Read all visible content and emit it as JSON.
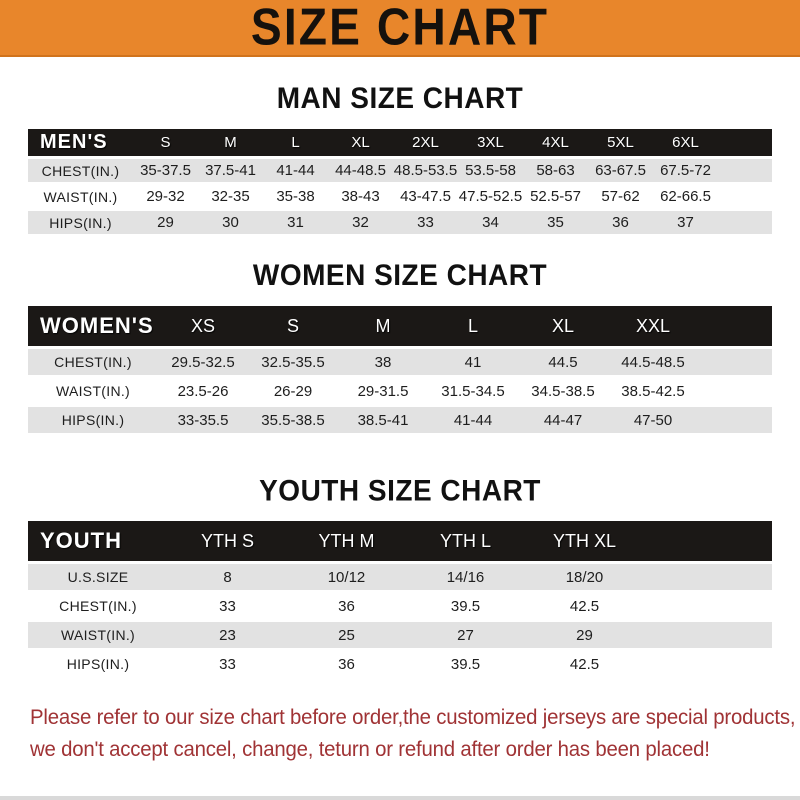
{
  "banner": {
    "title": "SIZE CHART"
  },
  "chart_data": [
    {
      "type": "table",
      "title": "MAN SIZE CHART",
      "columns": [
        "MEN'S",
        "S",
        "M",
        "L",
        "XL",
        "2XL",
        "3XL",
        "4XL",
        "5XL",
        "6XL"
      ],
      "rows": [
        [
          "CHEST(IN.)",
          "35-37.5",
          "37.5-41",
          "41-44",
          "44-48.5",
          "48.5-53.5",
          "53.5-58",
          "58-63",
          "63-67.5",
          "67.5-72"
        ],
        [
          "WAIST(IN.)",
          "29-32",
          "32-35",
          "35-38",
          "38-43",
          "43-47.5",
          "47.5-52.5",
          "52.5-57",
          "57-62",
          "62-66.5"
        ],
        [
          "HIPS(IN.)",
          "29",
          "30",
          "31",
          "32",
          "33",
          "34",
          "35",
          "36",
          "37"
        ]
      ]
    },
    {
      "type": "table",
      "title": "WOMEN SIZE CHART",
      "columns": [
        "WOMEN'S",
        "XS",
        "S",
        "M",
        "L",
        "XL",
        "XXL"
      ],
      "rows": [
        [
          "CHEST(IN.)",
          "29.5-32.5",
          "32.5-35.5",
          "38",
          "41",
          "44.5",
          "44.5-48.5"
        ],
        [
          "WAIST(IN.)",
          "23.5-26",
          "26-29",
          "29-31.5",
          "31.5-34.5",
          "34.5-38.5",
          "38.5-42.5"
        ],
        [
          "HIPS(IN.)",
          "33-35.5",
          "35.5-38.5",
          "38.5-41",
          "41-44",
          "44-47",
          "47-50"
        ]
      ]
    },
    {
      "type": "table",
      "title": "YOUTH SIZE CHART",
      "columns": [
        "YOUTH",
        "YTH S",
        "YTH M",
        "YTH L",
        "YTH XL"
      ],
      "rows": [
        [
          "U.S.SIZE",
          "8",
          "10/12",
          "14/16",
          "18/20"
        ],
        [
          "CHEST(IN.)",
          "33",
          "36",
          "39.5",
          "42.5"
        ],
        [
          "WAIST(IN.)",
          "23",
          "25",
          "27",
          "29"
        ],
        [
          "HIPS(IN.)",
          "33",
          "36",
          "39.5",
          "42.5"
        ]
      ]
    }
  ],
  "footer": {
    "line1": "Please refer to our size chart before order,the customized jerseys are special products,",
    "line2": "we don't accept cancel, change, teturn or refund after order has been placed!"
  },
  "colors": {
    "banner_bg": "#E8862B",
    "header_bar_bg": "#1B1816",
    "alt_row_bg": "#E2E2E2",
    "footer_text": "#A03335",
    "title_text": "#111111"
  }
}
